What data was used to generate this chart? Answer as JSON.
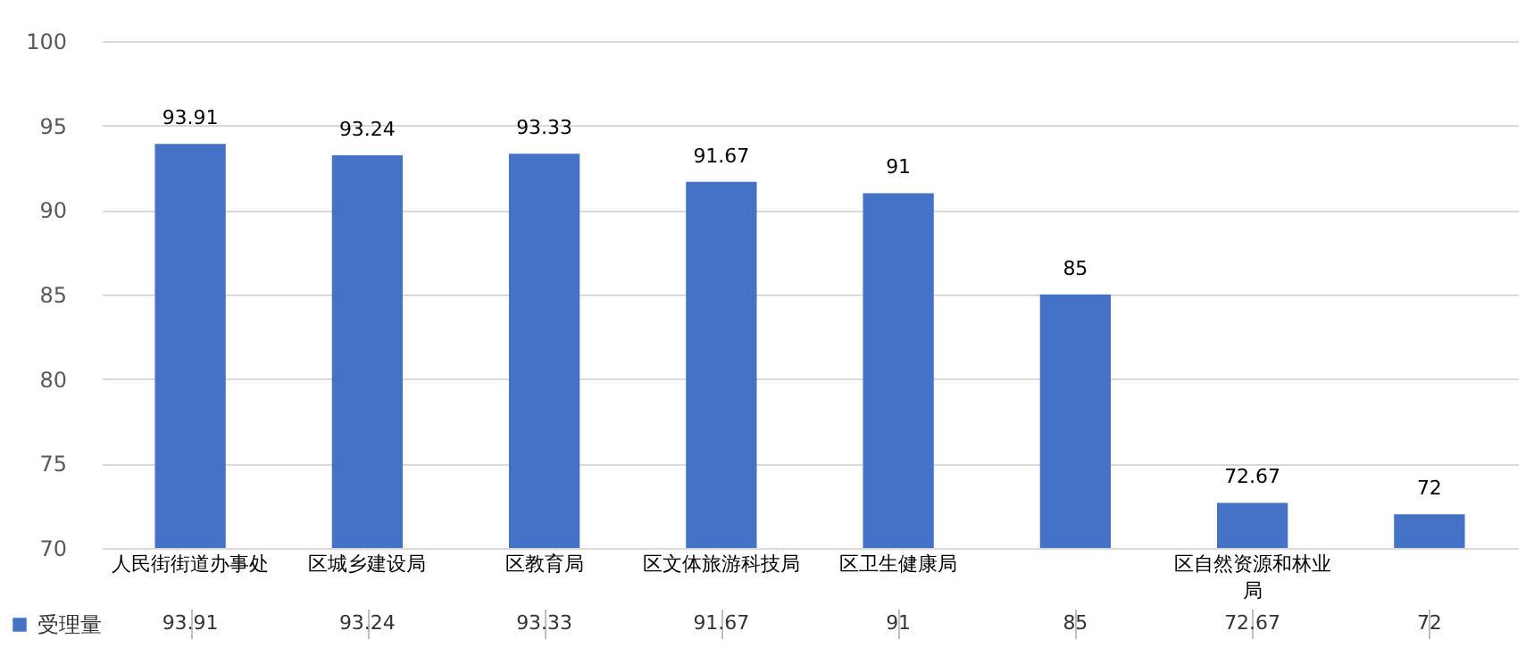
{
  "chart_data": {
    "type": "bar",
    "categories": [
      "人民街街道办事处",
      "区城乡建设局",
      "区教育局",
      "区文体旅游科技局",
      "区卫生健康局",
      null,
      "区自然资源和林业局",
      null
    ],
    "series": [
      {
        "name": "受理量",
        "color": "#4472c4",
        "values": [
          93.91,
          93.24,
          93.33,
          91.67,
          91,
          85,
          72.67,
          72
        ],
        "value_labels": [
          "93.91",
          "93.24",
          "93.33",
          "91.67",
          "91",
          "85",
          "72.67",
          "72"
        ]
      }
    ],
    "ylim": [
      70,
      100
    ],
    "yticks": [
      70,
      75,
      80,
      85,
      90,
      95,
      100
    ],
    "grid": "y",
    "legend": "bottom left",
    "data_labels": true
  }
}
